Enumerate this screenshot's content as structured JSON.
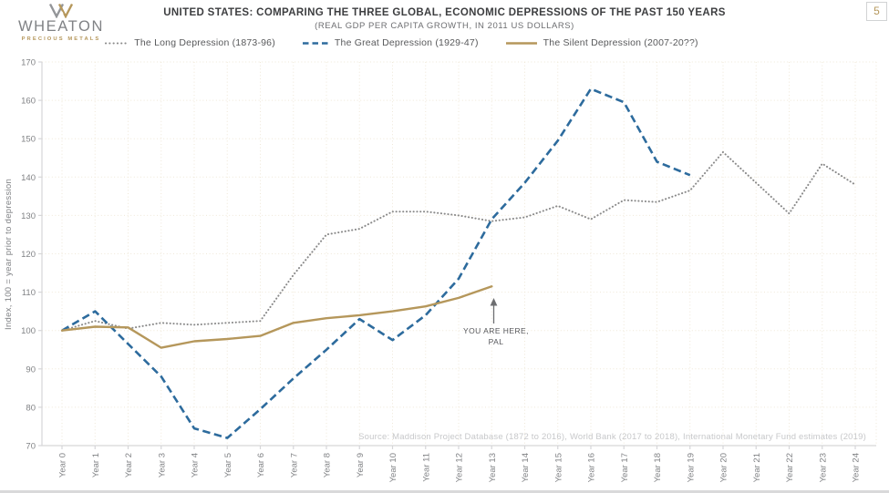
{
  "logo": {
    "name": "WHEATON",
    "tagline": "PRECIOUS METALS"
  },
  "header": {
    "title": "UNITED STATES: COMPARING THE THREE GLOBAL, ECONOMIC DEPRESSIONS OF THE PAST 150 YEARS",
    "subtitle": "(REAL GDP PER CAPITA GROWTH, IN 2011 US DOLLARS)",
    "page_number": "5"
  },
  "footer": {
    "source": "Source: Maddison Project Database (1872 to 2016), World Bank (2017 to 2018), International Monetary Fund estimates (2019)"
  },
  "chart_data": {
    "type": "line",
    "title": "UNITED STATES: COMPARING THE THREE GLOBAL, ECONOMIC DEPRESSIONS OF THE PAST 150 YEARS",
    "subtitle": "(REAL GDP PER CAPITA GROWTH, IN 2011 US DOLLARS)",
    "xlabel": "",
    "ylabel": "Index, 100 = year prior to depression",
    "ylim": [
      70,
      170
    ],
    "y_ticks": [
      70,
      80,
      90,
      100,
      110,
      120,
      130,
      140,
      150,
      160,
      170
    ],
    "x": [
      0,
      1,
      2,
      3,
      4,
      5,
      6,
      7,
      8,
      9,
      10,
      11,
      12,
      13,
      14,
      15,
      16,
      17,
      18,
      19,
      20,
      21,
      22,
      23,
      24
    ],
    "x_labels": [
      "Year 0",
      "Year 1",
      "Year 2",
      "Year 3",
      "Year 4",
      "Year 5",
      "Year 6",
      "Year 7",
      "Year 8",
      "Year 9",
      "Year 10",
      "Year 11",
      "Year 12",
      "Year 13",
      "Year 14",
      "Year 15",
      "Year 16",
      "Year 17",
      "Year 18",
      "Year 19",
      "Year 20",
      "Year 21",
      "Year 22",
      "Year 23",
      "Year 24"
    ],
    "x_label_rotation": -90,
    "grid": true,
    "grid_color": "#efe8d8",
    "axis_color": "#d6d6d8",
    "legend_position": "top-center",
    "annotation": {
      "line1": "YOU ARE HERE,",
      "line2": "PAL"
    },
    "series": [
      {
        "key": "long-depression",
        "name": "The Long Depression (1873-96)",
        "style": "dotted",
        "color": "#8a8a8a",
        "values": [
          100,
          102.5,
          100.5,
          102,
          101.5,
          102,
          102.5,
          114.5,
          125,
          126.5,
          131,
          131,
          130,
          128.5,
          129.5,
          132.5,
          129,
          134,
          133.5,
          136.5,
          146.5,
          138.5,
          130.5,
          143.5,
          138
        ]
      },
      {
        "key": "great-depression",
        "name": "The Great Depression (1929-47)",
        "style": "dashed",
        "color": "#2d6b9d",
        "values": [
          100,
          105,
          96.5,
          88,
          74.5,
          72,
          79.5,
          87.5,
          95,
          103,
          97.5,
          104,
          113.5,
          129,
          138.5,
          149.5,
          163,
          159.5,
          144,
          140.5
        ]
      },
      {
        "key": "silent-depression",
        "name": "The Silent Depression (2007-20??)",
        "style": "solid",
        "color": "#b5975b",
        "values": [
          100,
          101,
          100.8,
          95.5,
          97.2,
          97.8,
          98.6,
          102,
          103.2,
          104,
          105,
          106.3,
          108.5,
          111.5
        ]
      }
    ]
  }
}
